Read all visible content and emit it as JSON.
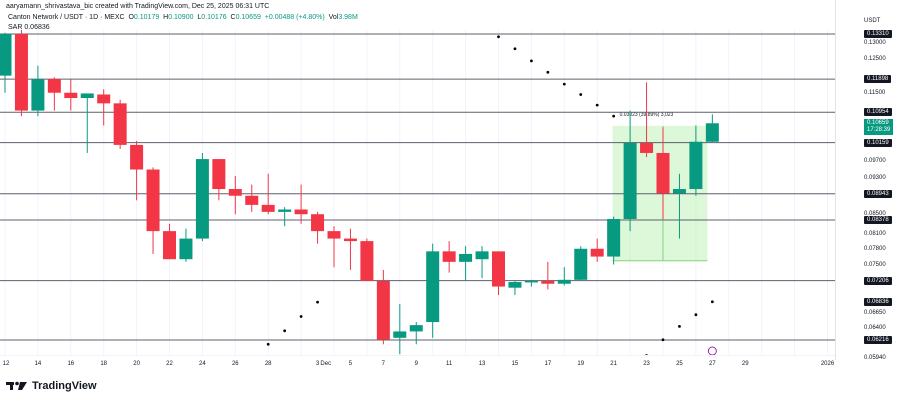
{
  "header": {
    "credit": "aaryamann_shrivastava_bic created with TradingView.com, Dec 25, 2025 06:31 UTC",
    "symbol": "Canton Network / USDT · 1D · MEXC",
    "o_label": "O",
    "o": "0.10179",
    "h_label": "H",
    "h": "0.10900",
    "l_label": "L",
    "l": "0.10176",
    "c_label": "C",
    "c": "0.10659",
    "change": "+0.00488 (+4.80%)",
    "vol_label": "Vol",
    "vol": "3.98M",
    "sar": "SAR 0.06836"
  },
  "price_axis": {
    "unit": "USDT",
    "ticks": [
      "0.13000",
      "0.12500",
      "0.11500",
      "0.09700",
      "0.09300",
      "0.08500",
      "0.08100",
      "0.07800",
      "0.07500",
      "0.06650",
      "0.06400",
      "0.05940"
    ],
    "levels": [
      "0.13310",
      "0.11898",
      "0.10954",
      "0.10159",
      "0.08943",
      "0.08378",
      "0.07206",
      "0.06836",
      "0.06216"
    ],
    "current_price": "0.10659",
    "countdown": "17:28:39"
  },
  "time_axis": {
    "ticks": [
      "12",
      "14",
      "16",
      "18",
      "20",
      "22",
      "24",
      "26",
      "28",
      "Dec",
      "3",
      "5",
      "7",
      "9",
      "11",
      "13",
      "15",
      "17",
      "19",
      "21",
      "23",
      "25",
      "27",
      "29",
      "2026"
    ]
  },
  "measure_label": "0.03023 (39.89%) 3,023",
  "branding": "TradingView",
  "colors": {
    "up": "#089981",
    "down": "#f23645",
    "measure": "#b2f0a8",
    "sar": "#000000",
    "level": "#131722"
  },
  "chart_data": {
    "type": "candlestick",
    "title": "Canton Network / USDT · 1D · MEXC",
    "ylabel": "USDT",
    "scale": "log",
    "ylim": [
      0.0594,
      0.1355
    ],
    "horizontal_levels": [
      0.1331,
      0.11898,
      0.10954,
      0.10159,
      0.08943,
      0.08378,
      0.07206,
      0.06216
    ],
    "candles": [
      {
        "d": "Nov 12",
        "o": 0.12,
        "h": 0.1335,
        "l": 0.115,
        "c": 0.1331
      },
      {
        "d": "Nov 13",
        "o": 0.1331,
        "h": 0.1345,
        "l": 0.1085,
        "c": 0.11
      },
      {
        "d": "Nov 14",
        "o": 0.11,
        "h": 0.123,
        "l": 0.1085,
        "c": 0.119
      },
      {
        "d": "Nov 15",
        "o": 0.119,
        "h": 0.1195,
        "l": 0.11,
        "c": 0.115
      },
      {
        "d": "Nov 16",
        "o": 0.115,
        "h": 0.119,
        "l": 0.11,
        "c": 0.1135
      },
      {
        "d": "Nov 17",
        "o": 0.1135,
        "h": 0.1145,
        "l": 0.099,
        "c": 0.1148
      },
      {
        "d": "Nov 18",
        "o": 0.1145,
        "h": 0.116,
        "l": 0.106,
        "c": 0.112
      },
      {
        "d": "Nov 19",
        "o": 0.112,
        "h": 0.113,
        "l": 0.1,
        "c": 0.101
      },
      {
        "d": "Nov 20",
        "o": 0.101,
        "h": 0.102,
        "l": 0.088,
        "c": 0.095
      },
      {
        "d": "Nov 21",
        "o": 0.095,
        "h": 0.0955,
        "l": 0.077,
        "c": 0.0815
      },
      {
        "d": "Nov 22",
        "o": 0.0815,
        "h": 0.083,
        "l": 0.076,
        "c": 0.076
      },
      {
        "d": "Nov 23",
        "o": 0.076,
        "h": 0.082,
        "l": 0.0755,
        "c": 0.08
      },
      {
        "d": "Nov 24",
        "o": 0.08,
        "h": 0.099,
        "l": 0.0795,
        "c": 0.0975
      },
      {
        "d": "Nov 25",
        "o": 0.0975,
        "h": 0.0975,
        "l": 0.088,
        "c": 0.0905
      },
      {
        "d": "Nov 26",
        "o": 0.0905,
        "h": 0.0935,
        "l": 0.085,
        "c": 0.089
      },
      {
        "d": "Nov 27",
        "o": 0.089,
        "h": 0.0915,
        "l": 0.0855,
        "c": 0.087
      },
      {
        "d": "Nov 28",
        "o": 0.087,
        "h": 0.094,
        "l": 0.085,
        "c": 0.0855
      },
      {
        "d": "Nov 29",
        "o": 0.0855,
        "h": 0.0865,
        "l": 0.0825,
        "c": 0.086
      },
      {
        "d": "Nov 30",
        "o": 0.086,
        "h": 0.0915,
        "l": 0.083,
        "c": 0.085
      },
      {
        "d": "Dec 1",
        "o": 0.085,
        "h": 0.0855,
        "l": 0.079,
        "c": 0.0815
      },
      {
        "d": "Dec 2",
        "o": 0.0815,
        "h": 0.0825,
        "l": 0.0745,
        "c": 0.08
      },
      {
        "d": "Dec 3",
        "o": 0.08,
        "h": 0.082,
        "l": 0.074,
        "c": 0.0795
      },
      {
        "d": "Dec 4",
        "o": 0.0795,
        "h": 0.08,
        "l": 0.072,
        "c": 0.072
      },
      {
        "d": "Dec 5",
        "o": 0.072,
        "h": 0.074,
        "l": 0.0615,
        "c": 0.0622
      },
      {
        "d": "Dec 6",
        "o": 0.0625,
        "h": 0.068,
        "l": 0.06,
        "c": 0.0635
      },
      {
        "d": "Dec 7",
        "o": 0.0635,
        "h": 0.065,
        "l": 0.0615,
        "c": 0.0645
      },
      {
        "d": "Dec 8",
        "o": 0.065,
        "h": 0.079,
        "l": 0.0625,
        "c": 0.0775
      },
      {
        "d": "Dec 9",
        "o": 0.0775,
        "h": 0.0795,
        "l": 0.0735,
        "c": 0.0755
      },
      {
        "d": "Dec 10",
        "o": 0.0755,
        "h": 0.0785,
        "l": 0.072,
        "c": 0.077
      },
      {
        "d": "Dec 11",
        "o": 0.076,
        "h": 0.0785,
        "l": 0.0725,
        "c": 0.0775
      },
      {
        "d": "Dec 12",
        "o": 0.0775,
        "h": 0.0775,
        "l": 0.0695,
        "c": 0.071
      },
      {
        "d": "Dec 13",
        "o": 0.0708,
        "h": 0.072,
        "l": 0.0695,
        "c": 0.0718
      },
      {
        "d": "Dec 14",
        "o": 0.0718,
        "h": 0.0722,
        "l": 0.071,
        "c": 0.072
      },
      {
        "d": "Dec 15",
        "o": 0.072,
        "h": 0.0755,
        "l": 0.0705,
        "c": 0.0715
      },
      {
        "d": "Dec 16",
        "o": 0.0715,
        "h": 0.0745,
        "l": 0.0712,
        "c": 0.0722
      },
      {
        "d": "Dec 17",
        "o": 0.0722,
        "h": 0.0785,
        "l": 0.072,
        "c": 0.078
      },
      {
        "d": "Dec 18",
        "o": 0.078,
        "h": 0.08,
        "l": 0.0755,
        "c": 0.0765
      },
      {
        "d": "Dec 19",
        "o": 0.0765,
        "h": 0.0845,
        "l": 0.075,
        "c": 0.084
      },
      {
        "d": "Dec 20",
        "o": 0.084,
        "h": 0.11,
        "l": 0.0815,
        "c": 0.1015
      },
      {
        "d": "Dec 21",
        "o": 0.1015,
        "h": 0.118,
        "l": 0.098,
        "c": 0.099
      },
      {
        "d": "Dec 22",
        "o": 0.099,
        "h": 0.1055,
        "l": 0.084,
        "c": 0.0895
      },
      {
        "d": "Dec 23",
        "o": 0.0895,
        "h": 0.094,
        "l": 0.08,
        "c": 0.0905
      },
      {
        "d": "Dec 24",
        "o": 0.0905,
        "h": 0.106,
        "l": 0.089,
        "c": 0.1018
      },
      {
        "d": "Dec 25",
        "o": 0.10179,
        "h": 0.109,
        "l": 0.10176,
        "c": 0.10659
      }
    ],
    "sar": [
      {
        "d": "Nov 27",
        "v": 0.0596
      },
      {
        "d": "Nov 28",
        "v": 0.0615
      },
      {
        "d": "Nov 29",
        "v": 0.0636
      },
      {
        "d": "Nov 30",
        "v": 0.0659
      },
      {
        "d": "Dec 1",
        "v": 0.0683
      },
      {
        "d": "Dec 12",
        "v": 0.1322
      },
      {
        "d": "Dec 13",
        "v": 0.1283
      },
      {
        "d": "Dec 14",
        "v": 0.1245
      },
      {
        "d": "Dec 15",
        "v": 0.121
      },
      {
        "d": "Dec 16",
        "v": 0.1175
      },
      {
        "d": "Dec 17",
        "v": 0.1145
      },
      {
        "d": "Dec 18",
        "v": 0.1115
      },
      {
        "d": "Dec 19",
        "v": 0.1085
      },
      {
        "d": "Dec 21",
        "v": 0.0598
      },
      {
        "d": "Dec 22",
        "v": 0.0622
      },
      {
        "d": "Dec 23",
        "v": 0.0643
      },
      {
        "d": "Dec 24",
        "v": 0.0662
      },
      {
        "d": "Dec 25",
        "v": 0.06836
      }
    ],
    "measure": {
      "from": "Dec 19",
      "to": "Dec 25",
      "low": 0.0757,
      "high": 0.1059,
      "label": "0.03023 (39.89%) 3,023"
    }
  }
}
